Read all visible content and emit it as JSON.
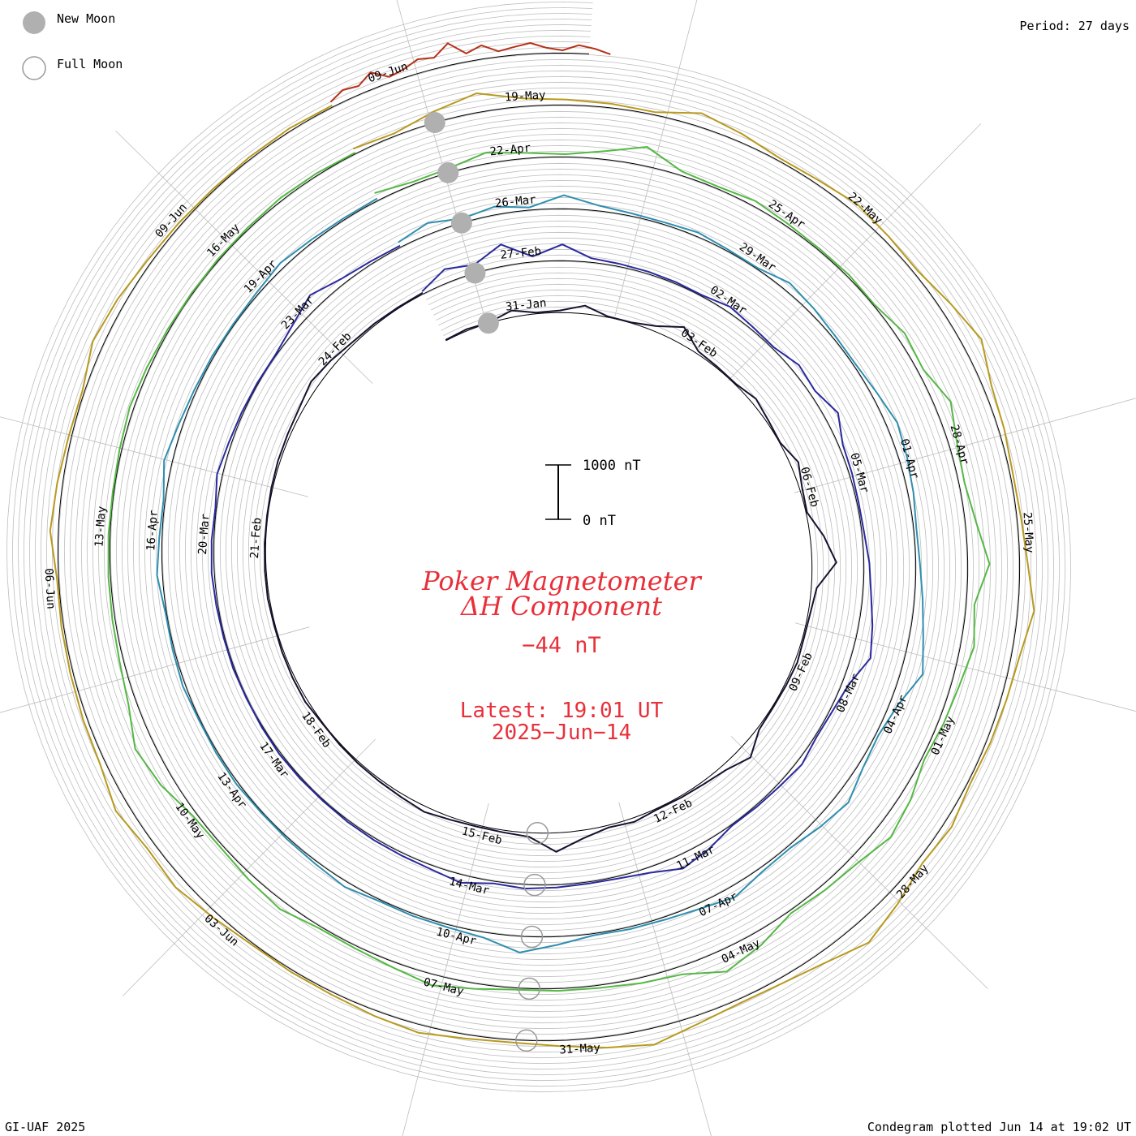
{
  "legend": {
    "new_moon_label": "New Moon",
    "full_moon_label": "Full Moon"
  },
  "header": {
    "period": "Period: 27 days"
  },
  "footer": {
    "credit": "GI-UAF 2025",
    "plotted": "Condegram plotted Jun 14 at 19:02 UT"
  },
  "center": {
    "title_line1": "Poker Magnetometer",
    "title_line2": "ΔH Component",
    "current_value": "−44 nT",
    "latest_label": "Latest: 19:01 UT",
    "latest_date": "2025−Jun−14",
    "scale_top_label": "1000 nT",
    "scale_bottom_label": "0 nT"
  },
  "colors": {
    "title": "#e8303a",
    "grid": "#bdbdbd",
    "baseline": "#000000",
    "moon_fill": "#b0b0b0",
    "moon_outline": "#999999"
  },
  "chart_data": {
    "type": "line",
    "layout": "spiral condegram",
    "period_days": 27,
    "y_unit": "nT",
    "scale_bar_nT": [
      0,
      1000
    ],
    "latest_value_nT": -44,
    "series": [
      {
        "color": "#1a1030",
        "revolution": 1,
        "date_labels": [
          "31-Jan",
          "03-Feb",
          "06-Feb",
          "09-Feb",
          "12-Feb",
          "15-Feb",
          "18-Feb",
          "21-Feb",
          "24-Feb"
        ],
        "values": [
          -30,
          -60,
          -20,
          -250,
          -40,
          -80,
          -300,
          -30,
          -20,
          -200,
          -600,
          -100,
          -50,
          -30,
          -200,
          -80,
          -20,
          -300,
          -100,
          -40,
          -500,
          -900,
          -200,
          -80,
          -50,
          -100,
          -60,
          -40,
          -80,
          -500,
          -200,
          -100,
          -60,
          -40,
          -150,
          -80,
          -300,
          -700,
          -150,
          -80,
          -60,
          -100,
          -200,
          -120,
          -80,
          -60,
          -40,
          -30,
          -100,
          -80,
          -60,
          -40,
          -60,
          -50,
          -40,
          -30,
          -50,
          -80,
          -100,
          -150,
          -300,
          -200,
          -80,
          -60,
          -40,
          -50
        ]
      },
      {
        "color": "#2a2a9e",
        "revolution": 2,
        "date_labels": [
          "27-Feb",
          "02-Mar",
          "05-Mar",
          "08-Mar",
          "11-Mar",
          "14-Mar",
          "17-Mar",
          "20-Mar",
          "23-Mar"
        ],
        "values": [
          -100,
          -500,
          -300,
          -800,
          -200,
          -600,
          -150,
          -100,
          -80,
          -60,
          -40,
          -200,
          -100,
          -60,
          -300,
          -200,
          -500,
          -150,
          -100,
          -60,
          -80,
          -200,
          -300,
          -500,
          -700,
          -250,
          -100,
          -60,
          -200,
          -100,
          -60,
          -40,
          -300,
          -500,
          -200,
          -80,
          -60,
          -100,
          -150,
          -80,
          -300,
          -150,
          -100,
          -80,
          -60,
          -40,
          -50,
          -60,
          -40,
          -30,
          -50,
          -40,
          -60,
          -100,
          -80,
          -40,
          -200,
          -100,
          -60,
          -40,
          -30,
          -200,
          -500,
          -200,
          -100,
          -60
        ]
      },
      {
        "color": "#2f8fb0",
        "revolution": 3,
        "date_labels": [
          "26-Mar",
          "29-Mar",
          "01-Apr",
          "04-Apr",
          "07-Apr",
          "10-Apr",
          "13-Apr",
          "16-Apr",
          "19-Apr"
        ],
        "values": [
          -200,
          -400,
          -150,
          -300,
          -100,
          -500,
          -200,
          -100,
          -80,
          -150,
          -60,
          -40,
          -300,
          -200,
          -100,
          -80,
          -200,
          -400,
          -300,
          -200,
          -100,
          -150,
          -300,
          -500,
          -800,
          -300,
          -100,
          -200,
          -500,
          -300,
          -100,
          -150,
          -400,
          -200,
          -100,
          -80,
          -60,
          -300,
          -600,
          -200,
          -100,
          -80,
          -60,
          -200,
          -100,
          -60,
          -40,
          -80,
          -60,
          -40,
          -100,
          -60,
          -40,
          -200,
          -100,
          -60,
          -300,
          -150,
          -80,
          -60,
          -40,
          -80,
          -200,
          -100,
          -60,
          -80
        ]
      },
      {
        "color": "#55b845",
        "revolution": 4,
        "date_labels": [
          "22-Apr",
          "25-Apr",
          "28-Apr",
          "01-May",
          "04-May",
          "07-May",
          "10-May",
          "13-May",
          "16-May"
        ],
        "values": [
          -300,
          -100,
          -150,
          -400,
          -200,
          -100,
          -300,
          -700,
          -150,
          -80,
          -200,
          -100,
          -60,
          -80,
          -40,
          -300,
          -200,
          -600,
          -300,
          -200,
          -400,
          -800,
          -300,
          -500,
          -300,
          -200,
          -100,
          -400,
          -600,
          -300,
          -200,
          -100,
          -500,
          -800,
          -300,
          -200,
          -100,
          -80,
          -60,
          -200,
          -400,
          -200,
          -100,
          -80,
          -300,
          -200,
          -100,
          -150,
          -500,
          -700,
          -300,
          -150,
          -100,
          -80,
          -60,
          -40,
          -80,
          -150,
          -100,
          -60,
          -40,
          -50,
          -60,
          -100,
          -80,
          -40
        ]
      },
      {
        "color": "#b89a1e",
        "revolution": 5,
        "date_labels": [
          "19-May",
          "22-May",
          "25-May",
          "28-May",
          "31-May",
          "03-Jun",
          "06-Jun",
          "09-Jun"
        ],
        "values": [
          -200,
          -100,
          -400,
          -700,
          -300,
          -200,
          -150,
          -100,
          -500,
          -300,
          -100,
          -150,
          -300,
          -200,
          -150,
          -400,
          -700,
          -300,
          -200,
          -100,
          -150,
          -300,
          -600,
          -300,
          -200,
          -150,
          -100,
          -300,
          -200,
          -500,
          -800,
          -400,
          -200,
          -150,
          -300,
          -600,
          -400,
          -200,
          -100,
          -150,
          -300,
          -200,
          -100,
          -80,
          -60,
          -200,
          -400,
          -300,
          -500,
          -200,
          -150,
          -100,
          -80,
          -60,
          -300,
          -200,
          -100,
          -80,
          -400,
          -300,
          -150,
          -100,
          -60,
          -80,
          -100,
          -60
        ]
      },
      {
        "color": "#b83018",
        "revolution": 6,
        "date_labels": [
          "09-Jun"
        ],
        "values": [
          -200,
          -400,
          -300,
          -600,
          -200,
          -300,
          -500,
          -400,
          -800,
          -300,
          -500,
          -200,
          -300,
          -400,
          -200,
          -100,
          -300,
          -200,
          -44
        ]
      }
    ],
    "new_moon_labels": [
      "27-Jan",
      "27-Feb",
      "29-Mar",
      "27-Apr",
      "27-May"
    ],
    "full_moon_labels": [
      "12-Feb",
      "14-Mar",
      "13-Apr",
      "12-May",
      "11-Jun"
    ]
  }
}
